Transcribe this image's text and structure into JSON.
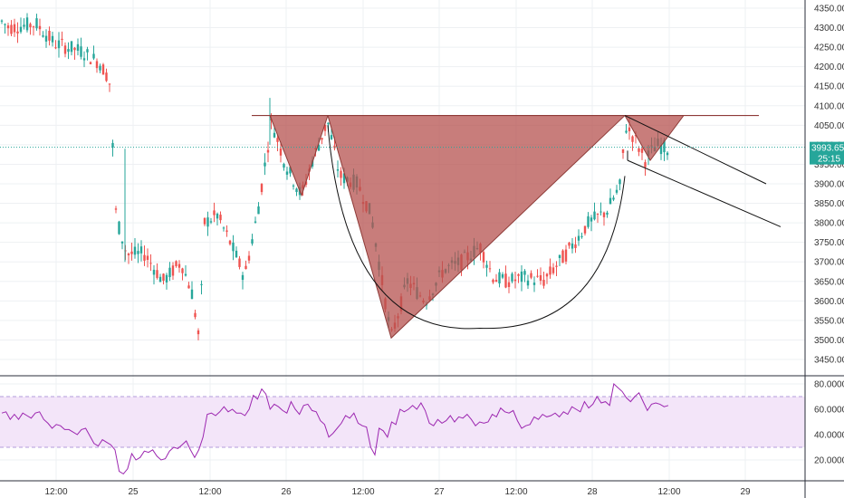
{
  "chart_data": [
    {
      "type": "candlestick",
      "panel": "price",
      "y_ticks": [
        "4350.00",
        "4300.00",
        "4250.00",
        "4200.00",
        "4150.00",
        "4100.00",
        "4050.00",
        "4000.00",
        "3950.00",
        "3900.00",
        "3850.00",
        "3800.00",
        "3750.00",
        "3700.00",
        "3650.00",
        "3600.00",
        "3550.00",
        "3500.00",
        "3450.00"
      ],
      "ylim": [
        3420,
        4370
      ],
      "last_price_label": "3993.65",
      "countdown_label": "25:15",
      "last_price": 3993.65,
      "colors": {
        "up": "#26a69a",
        "down": "#ef5350",
        "pattern_fill": "#b5524f",
        "price_line": "#26a69a"
      },
      "key_prices": {
        "resistance": 4075,
        "cup_low": 3505,
        "first_trough": 3870,
        "open_high": 4320,
        "left_low": 3460
      },
      "grid": true,
      "drawings": [
        "resistance-line",
        "triangle-pattern",
        "cup-arc",
        "descending-channel"
      ]
    },
    {
      "type": "line",
      "panel": "rsi",
      "y_ticks": [
        "80.0000",
        "60.0000",
        "40.0000",
        "20.0000"
      ],
      "ylim": [
        8,
        87
      ],
      "band": [
        30,
        70
      ],
      "colors": {
        "line": "#9c27b0",
        "band_fill": "#f3e5f9",
        "band_border": "#b39ddb"
      },
      "values": [
        57,
        58,
        52,
        56,
        52,
        57,
        55,
        53,
        57,
        58,
        52,
        49,
        45,
        48,
        47,
        44,
        44,
        42,
        40,
        44,
        45,
        39,
        33,
        31,
        36,
        34,
        32,
        28,
        11,
        9,
        13,
        25,
        20,
        22,
        27,
        26,
        28,
        23,
        20,
        21,
        27,
        30,
        29,
        32,
        35,
        28,
        22,
        28,
        38,
        56,
        57,
        55,
        58,
        62,
        58,
        60,
        57,
        57,
        55,
        60,
        71,
        68,
        76,
        72,
        60,
        64,
        62,
        59,
        57,
        66,
        60,
        56,
        63,
        64,
        59,
        58,
        51,
        48,
        38,
        41,
        45,
        49,
        55,
        53,
        57,
        49,
        47,
        46,
        30,
        24,
        45,
        43,
        38,
        50,
        48,
        60,
        58,
        60,
        63,
        60,
        65,
        59,
        49,
        47,
        52,
        49,
        51,
        55,
        50,
        54,
        53,
        56,
        52,
        47,
        50,
        49,
        50,
        56,
        54,
        61,
        58,
        57,
        59,
        51,
        45,
        47,
        48,
        54,
        52,
        56,
        54,
        55,
        57,
        54,
        58,
        56,
        62,
        60,
        58,
        66,
        61,
        64,
        70,
        65,
        66,
        63,
        80,
        77,
        74,
        69,
        66,
        70,
        73,
        66,
        59,
        64,
        65,
        64,
        62,
        63
      ]
    }
  ],
  "x_ticks": [
    "12:00",
    "25",
    "12:00",
    "26",
    "12:00",
    "27",
    "12:00",
    "28",
    "12:00",
    "29"
  ]
}
